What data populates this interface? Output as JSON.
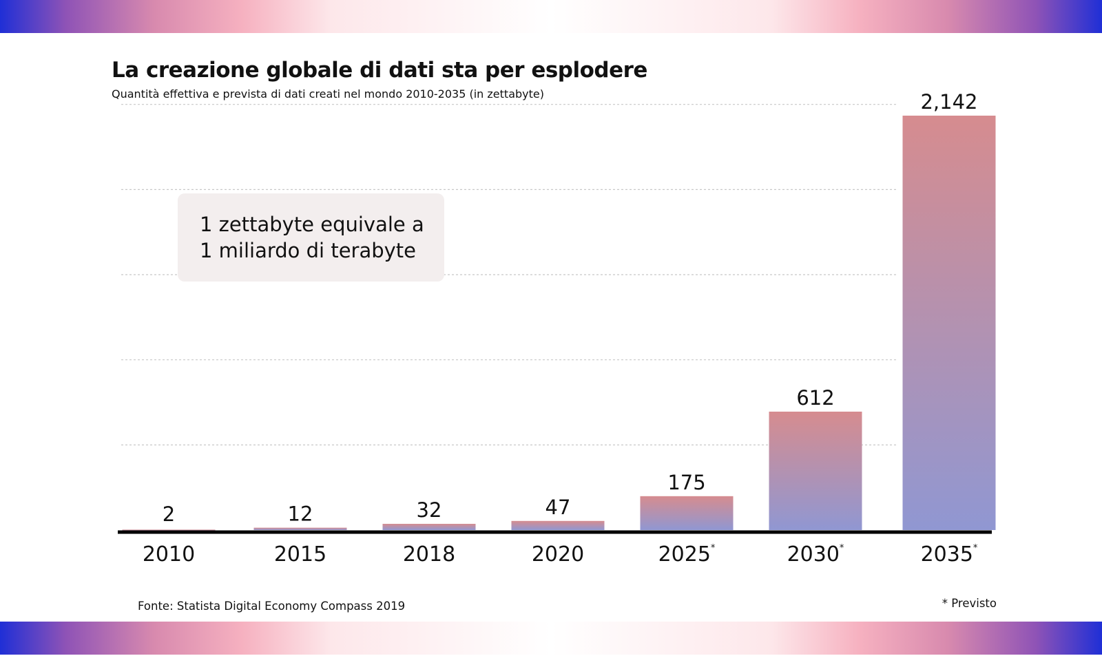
{
  "title": "La creazione globale di dati sta per esplodere",
  "subtitle": "Quantità effettiva e prevista di dati creati nel mondo 2010-2035 (in zettabyte)",
  "callout": {
    "line1": "1 zettabyte equivale a",
    "line2": "1 miliardo di terabyte"
  },
  "source": "Fonte: Statista Digital Economy Compass 2019",
  "forecast_note": "* Previsto",
  "colors": {
    "bar_top": "#d68c8f",
    "bar_bottom": "#9097d2",
    "axis": "#000000",
    "grid": "#c8c8c8",
    "callout_bg": "#f3eeee"
  },
  "chart_data": {
    "type": "bar",
    "title": "La creazione globale di dati sta per esplodere",
    "subtitle": "Quantità effettiva e prevista di dati creati nel mondo 2010-2035 (in zettabyte)",
    "categories": [
      "2010",
      "2015",
      "2018",
      "2020",
      "2025",
      "2030",
      "2035"
    ],
    "values": [
      2,
      12,
      32,
      47,
      175,
      612,
      2142
    ],
    "value_labels": [
      "2",
      "12",
      "32",
      "47",
      "175",
      "612",
      "2,142"
    ],
    "forecast": [
      false,
      false,
      false,
      false,
      true,
      true,
      true
    ],
    "forecast_marker": "*",
    "ylim": [
      0,
      2142
    ],
    "grid": true,
    "gridlines": [
      440,
      880,
      1320,
      1760,
      2200
    ],
    "legend": "none"
  }
}
